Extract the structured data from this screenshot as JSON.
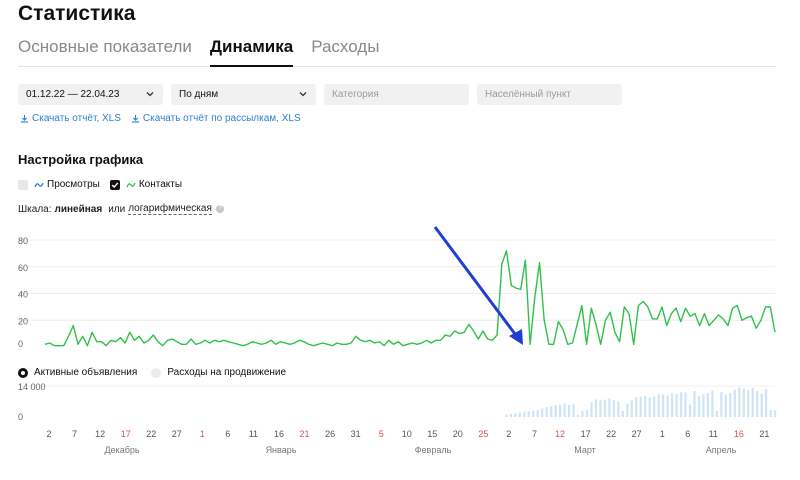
{
  "page": {
    "title": "Статистика"
  },
  "tabs": [
    {
      "label": "Основные показатели",
      "active": false
    },
    {
      "label": "Динамика",
      "active": true
    },
    {
      "label": "Расходы",
      "active": false
    }
  ],
  "filters": {
    "date_range": "01.12.22 — 22.04.23",
    "grouping": "По дням",
    "category_placeholder": "Категория",
    "city_placeholder": "Населённый пункт"
  },
  "downloads": {
    "report": "Скачать отчёт, XLS",
    "mailing_report": "Скачать отчёт по рассылкам, XLS"
  },
  "chart_settings": {
    "title": "Настройка графика",
    "views_label": "Просмотры",
    "views_checked": false,
    "contacts_label": "Контакты",
    "contacts_checked": true
  },
  "scale": {
    "label": "Шкала:",
    "linear": "линейная",
    "or": "или",
    "log": "логарифмическая",
    "info": "?"
  },
  "bottom_toggle": {
    "active_ads": "Активные объявления",
    "promo_spend": "Расходы на продвижение"
  },
  "colors": {
    "contacts_line": "#2fc14a",
    "views_line": "#2d7fd6",
    "bars": "#cfe4f6",
    "weekend": "#d9534f",
    "arrow": "#1f3fd1"
  },
  "chart_data": {
    "type": "line",
    "y_ticks": [
      "80",
      "60",
      "40",
      "20",
      "0"
    ],
    "y_range": [
      0,
      80
    ],
    "series": [
      {
        "values": [
          2,
          3,
          1,
          1,
          1,
          8,
          16,
          2,
          8,
          1,
          11,
          4,
          4,
          1,
          5,
          4,
          7,
          3,
          11,
          5,
          8,
          3,
          5,
          9,
          4,
          1,
          5,
          6,
          4,
          2,
          2,
          6,
          2,
          3,
          5,
          3,
          5,
          4,
          5,
          4,
          3,
          2,
          1,
          2,
          4,
          3,
          2,
          3,
          5,
          2,
          4,
          3,
          2,
          3,
          5,
          4,
          2,
          1,
          2,
          3,
          2,
          1,
          3,
          2,
          2,
          3,
          8,
          5,
          4,
          5,
          3,
          4,
          1,
          5,
          2,
          4,
          1,
          2,
          3,
          2,
          3,
          5,
          3,
          5,
          5,
          9,
          8,
          12,
          10,
          11,
          17,
          12,
          6,
          12,
          6,
          5,
          9,
          62,
          72,
          46,
          44,
          43,
          65,
          2,
          37,
          63,
          20,
          2,
          2,
          19,
          13,
          2,
          3,
          17,
          31,
          2,
          29,
          17,
          2,
          20,
          26,
          11,
          4,
          30,
          25,
          2,
          31,
          34,
          30,
          21,
          21,
          30,
          16,
          25,
          29,
          19,
          29,
          23,
          25,
          16,
          25,
          16,
          20,
          24,
          21,
          16,
          29,
          31,
          20,
          22,
          23,
          14,
          20,
          30,
          30,
          11
        ]
      }
    ],
    "bar_axis_label": "14 000",
    "bar_axis_zero": "0",
    "bars": [
      0,
      0,
      0,
      0,
      0,
      0,
      0,
      0,
      0,
      0,
      0,
      0,
      0,
      0,
      0,
      0,
      0,
      0,
      0,
      0,
      0,
      0,
      0,
      0,
      0,
      0,
      0,
      0,
      0,
      0,
      0,
      0,
      0,
      0,
      0,
      0,
      0,
      0,
      0,
      0,
      0,
      0,
      0,
      0,
      0,
      0,
      0,
      0,
      0,
      0,
      0,
      0,
      0,
      0,
      0,
      0,
      0,
      0,
      0,
      0,
      0,
      0,
      0,
      0,
      0,
      0,
      0,
      0,
      0,
      0,
      0,
      0,
      0,
      0,
      0,
      0,
      0,
      0,
      0,
      0,
      0,
      0,
      0,
      0,
      0,
      0,
      0,
      0,
      0,
      0,
      0,
      0,
      0,
      0,
      0,
      0,
      0,
      0,
      0,
      0,
      0,
      0,
      0,
      1200,
      1500,
      1800,
      2100,
      2400,
      2600,
      3000,
      3400,
      4000,
      4800,
      5200,
      5600,
      6000,
      6400,
      5800,
      6200,
      1000,
      3000,
      3500,
      7200,
      8500,
      8000,
      8400,
      9000,
      8200,
      7600,
      3000,
      6500,
      8000,
      9600,
      9800,
      10200,
      9400,
      9800,
      11000,
      10800,
      10500,
      11500,
      11200,
      12000,
      11800,
      6000,
      12500,
      10200,
      11000,
      11500,
      12800,
      3000,
      12000,
      10800,
      11600,
      13200,
      14200,
      13800,
      13000,
      14000,
      12600,
      11200,
      13400,
      3400,
      3200
    ],
    "x_ticks": [
      {
        "label": "2",
        "weekend": false
      },
      {
        "label": "7",
        "weekend": false
      },
      {
        "label": "12",
        "weekend": false
      },
      {
        "label": "17",
        "weekend": true
      },
      {
        "label": "22",
        "weekend": false
      },
      {
        "label": "27",
        "weekend": false
      },
      {
        "label": "1",
        "weekend": true
      },
      {
        "label": "6",
        "weekend": false
      },
      {
        "label": "11",
        "weekend": false
      },
      {
        "label": "16",
        "weekend": false
      },
      {
        "label": "21",
        "weekend": true
      },
      {
        "label": "26",
        "weekend": false
      },
      {
        "label": "31",
        "weekend": false
      },
      {
        "label": "5",
        "weekend": true
      },
      {
        "label": "10",
        "weekend": false
      },
      {
        "label": "15",
        "weekend": false
      },
      {
        "label": "20",
        "weekend": false
      },
      {
        "label": "25",
        "weekend": true
      },
      {
        "label": "2",
        "weekend": false
      },
      {
        "label": "7",
        "weekend": false
      },
      {
        "label": "12",
        "weekend": true
      },
      {
        "label": "17",
        "weekend": false
      },
      {
        "label": "22",
        "weekend": false
      },
      {
        "label": "27",
        "weekend": false
      },
      {
        "label": "1",
        "weekend": false
      },
      {
        "label": "6",
        "weekend": false
      },
      {
        "label": "11",
        "weekend": false
      },
      {
        "label": "16",
        "weekend": true
      },
      {
        "label": "21",
        "weekend": false
      }
    ],
    "months": [
      "Декабрь",
      "Январь",
      "Февраль",
      "Март",
      "Апрель"
    ],
    "grid": true
  }
}
